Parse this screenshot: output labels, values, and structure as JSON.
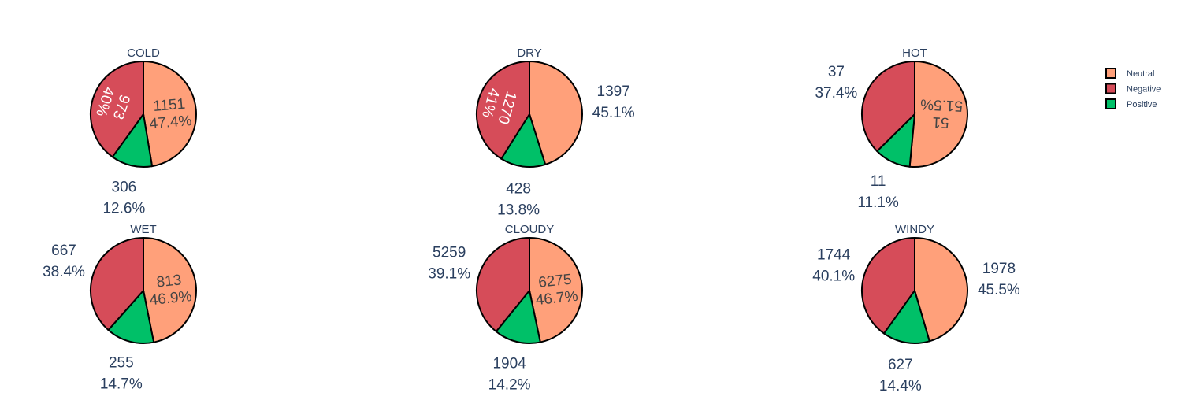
{
  "chart_data": {
    "type": "pie",
    "legend": {
      "placement": "top-right",
      "entries": [
        {
          "name": "Neutral",
          "color": "#ffa07a"
        },
        {
          "name": "Negative",
          "color": "#d64c59"
        },
        {
          "name": "Positive",
          "color": "#00c068"
        }
      ]
    },
    "pies": [
      {
        "title": "COLD",
        "slices": [
          {
            "name": "Neutral",
            "value": 1151,
            "percent": "47.4%"
          },
          {
            "name": "Positive",
            "value": 306,
            "percent": "12.6%"
          },
          {
            "name": "Negative",
            "value": 973,
            "percent": "40%"
          }
        ]
      },
      {
        "title": "DRY",
        "slices": [
          {
            "name": "Neutral",
            "value": 1397,
            "percent": "45.1%"
          },
          {
            "name": "Positive",
            "value": 428,
            "percent": "13.8%"
          },
          {
            "name": "Negative",
            "value": 1270,
            "percent": "41%"
          }
        ]
      },
      {
        "title": "HOT",
        "slices": [
          {
            "name": "Neutral",
            "value": 51,
            "percent": "51.5%"
          },
          {
            "name": "Positive",
            "value": 11,
            "percent": "11.1%"
          },
          {
            "name": "Negative",
            "value": 37,
            "percent": "37.4%"
          }
        ]
      },
      {
        "title": "WET",
        "slices": [
          {
            "name": "Neutral",
            "value": 813,
            "percent": "46.9%"
          },
          {
            "name": "Positive",
            "value": 255,
            "percent": "14.7%"
          },
          {
            "name": "Negative",
            "value": 667,
            "percent": "38.4%"
          }
        ]
      },
      {
        "title": "CLOUDY",
        "slices": [
          {
            "name": "Neutral",
            "value": 6275,
            "percent": "46.7%"
          },
          {
            "name": "Positive",
            "value": 1904,
            "percent": "14.2%"
          },
          {
            "name": "Negative",
            "value": 5259,
            "percent": "39.1%"
          }
        ]
      },
      {
        "title": "WINDY",
        "slices": [
          {
            "name": "Neutral",
            "value": 1978,
            "percent": "45.5%"
          },
          {
            "name": "Positive",
            "value": 627,
            "percent": "14.4%"
          },
          {
            "name": "Negative",
            "value": 1744,
            "percent": "40.1%"
          }
        ]
      }
    ]
  }
}
